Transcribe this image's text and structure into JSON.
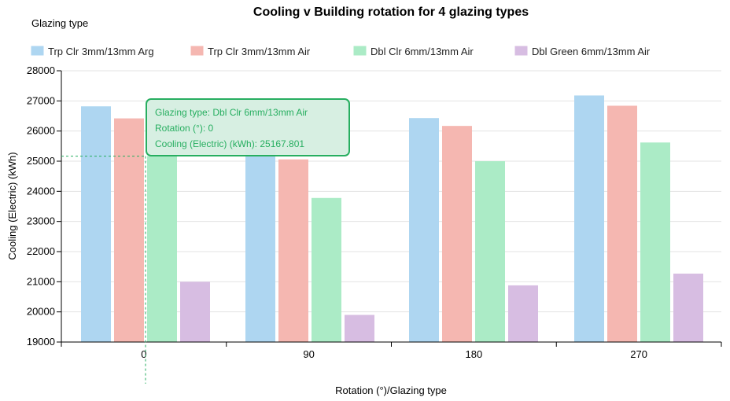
{
  "legend_title": "Glazing type",
  "chart_data": {
    "type": "bar",
    "title": "Cooling v Building rotation for 4 glazing types",
    "xlabel": "Rotation (°)/Glazing type",
    "ylabel": "Cooling (Electric) (kWh)",
    "categories": [
      "0",
      "90",
      "180",
      "270"
    ],
    "ylim": [
      19000,
      28000
    ],
    "yticks": [
      "19000",
      "20000",
      "21000",
      "22000",
      "23000",
      "24000",
      "25000",
      "26000",
      "27000",
      "28000"
    ],
    "grid": true,
    "legend_position": "top",
    "series": [
      {
        "name": "Trp Clr 3mm/13mm Arg",
        "color": "#aed6f1",
        "values": [
          26820,
          25400,
          26430,
          27180
        ]
      },
      {
        "name": "Trp Clr 3mm/13mm Air",
        "color": "#f5b7b1",
        "values": [
          26420,
          25060,
          26170,
          26840
        ]
      },
      {
        "name": "Dbl Clr 6mm/13mm Air",
        "color": "#abebc6",
        "values": [
          25167.801,
          23780,
          25000,
          25620
        ]
      },
      {
        "name": "Dbl Green 6mm/13mm Air",
        "color": "#d7bde2",
        "values": [
          21000,
          19900,
          20880,
          21270
        ]
      }
    ]
  },
  "tooltip": {
    "line1": "Glazing type: Dbl Clr 6mm/13mm Air",
    "line2": "Rotation (°): 0",
    "line3": "Cooling (Electric) (kWh): 25167.801",
    "border_color": "#27ae60",
    "text_color": "#27ae60",
    "fill_color": "#d5eee0"
  }
}
